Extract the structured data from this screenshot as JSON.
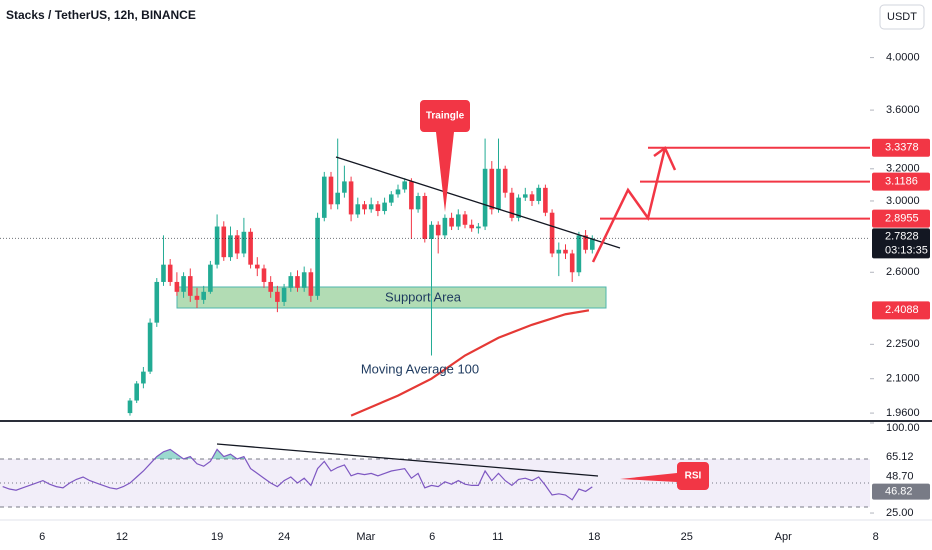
{
  "chart_data": [
    {
      "type": "candlestick",
      "title": "Stacks / TetherUS, 12h, BINANCE",
      "currency": "USDT",
      "log": true,
      "xlim": [
        -19.4,
        111.94
      ],
      "ylim": [
        1.933,
        4.49
      ],
      "yticks": [
        {
          "value": 1.96,
          "label": "1.9600"
        },
        {
          "value": 2.1,
          "label": "2.1000"
        },
        {
          "value": 2.25,
          "label": "2.2500"
        },
        {
          "value": 2.6,
          "label": "2.6000"
        },
        {
          "value": 3,
          "label": "3.0000"
        },
        {
          "value": 3.2,
          "label": "3.2000"
        },
        {
          "value": 3.6,
          "label": "3.6000"
        },
        {
          "value": 4,
          "label": "4.0000"
        }
      ],
      "up_color": "#22ab94",
      "down_color": "#f23645",
      "candles": [
        [
          1.96,
          2.02,
          1.95,
          2.01
        ],
        [
          2.01,
          2.09,
          2.0,
          2.08
        ],
        [
          2.08,
          2.15,
          2.06,
          2.13
        ],
        [
          2.13,
          2.37,
          2.12,
          2.35
        ],
        [
          2.35,
          2.57,
          2.33,
          2.55
        ],
        [
          2.55,
          2.8,
          2.53,
          2.64
        ],
        [
          2.64,
          2.67,
          2.53,
          2.55
        ],
        [
          2.55,
          2.6,
          2.48,
          2.5
        ],
        [
          2.5,
          2.6,
          2.47,
          2.58
        ],
        [
          2.58,
          2.62,
          2.45,
          2.48
        ],
        [
          2.48,
          2.52,
          2.42,
          2.46
        ],
        [
          2.46,
          2.53,
          2.44,
          2.5
        ],
        [
          2.5,
          2.66,
          2.49,
          2.64
        ],
        [
          2.64,
          2.92,
          2.62,
          2.85
        ],
        [
          2.85,
          2.88,
          2.66,
          2.68
        ],
        [
          2.68,
          2.85,
          2.66,
          2.8
        ],
        [
          2.8,
          2.83,
          2.67,
          2.7
        ],
        [
          2.7,
          2.9,
          2.68,
          2.82
        ],
        [
          2.82,
          2.84,
          2.62,
          2.64
        ],
        [
          2.64,
          2.68,
          2.58,
          2.62
        ],
        [
          2.62,
          2.64,
          2.52,
          2.55
        ],
        [
          2.55,
          2.58,
          2.47,
          2.5
        ],
        [
          2.5,
          2.53,
          2.4,
          2.45
        ],
        [
          2.45,
          2.54,
          2.43,
          2.52
        ],
        [
          2.52,
          2.6,
          2.5,
          2.58
        ],
        [
          2.58,
          2.61,
          2.5,
          2.52
        ],
        [
          2.52,
          2.63,
          2.5,
          2.6
        ],
        [
          2.6,
          2.62,
          2.45,
          2.48
        ],
        [
          2.48,
          2.93,
          2.46,
          2.9
        ],
        [
          2.9,
          3.18,
          2.88,
          3.15
        ],
        [
          3.15,
          3.18,
          2.95,
          2.98
        ],
        [
          2.98,
          3.4,
          2.95,
          3.05
        ],
        [
          3.05,
          3.22,
          3.02,
          3.12
        ],
        [
          3.12,
          3.15,
          2.88,
          2.92
        ],
        [
          2.92,
          3.02,
          2.9,
          2.98
        ],
        [
          2.98,
          3.0,
          2.92,
          2.95
        ],
        [
          2.95,
          3.02,
          2.93,
          2.98
        ],
        [
          2.98,
          3.0,
          2.91,
          2.94
        ],
        [
          2.94,
          3.02,
          2.92,
          2.99
        ],
        [
          2.99,
          3.06,
          2.97,
          3.04
        ],
        [
          3.04,
          3.1,
          3.02,
          3.07
        ],
        [
          3.07,
          3.14,
          3.05,
          3.12
        ],
        [
          3.12,
          3.14,
          2.78,
          2.95
        ],
        [
          2.95,
          3.05,
          2.93,
          3.03
        ],
        [
          3.03,
          3.05,
          2.76,
          2.78
        ],
        [
          2.78,
          2.88,
          2.2,
          2.86
        ],
        [
          2.86,
          2.88,
          2.7,
          2.8
        ],
        [
          2.8,
          2.92,
          2.78,
          2.9
        ],
        [
          2.9,
          2.93,
          2.83,
          2.85
        ],
        [
          2.85,
          2.95,
          2.83,
          2.92
        ],
        [
          2.92,
          2.94,
          2.84,
          2.86
        ],
        [
          2.86,
          2.89,
          2.82,
          2.84
        ],
        [
          2.84,
          2.87,
          2.81,
          2.85
        ],
        [
          2.85,
          3.4,
          2.83,
          3.2
        ],
        [
          3.2,
          3.25,
          2.92,
          2.95
        ],
        [
          2.95,
          3.4,
          2.93,
          3.2
        ],
        [
          3.2,
          3.22,
          3.02,
          3.05
        ],
        [
          3.05,
          3.08,
          2.88,
          2.9
        ],
        [
          2.9,
          3.04,
          2.88,
          3.02
        ],
        [
          3.02,
          3.08,
          3.0,
          3.04
        ],
        [
          3.04,
          3.06,
          2.97,
          3.0
        ],
        [
          3.0,
          3.1,
          2.98,
          3.08
        ],
        [
          3.08,
          3.1,
          2.91,
          2.93
        ],
        [
          2.93,
          2.95,
          2.68,
          2.7
        ],
        [
          2.7,
          2.76,
          2.58,
          2.72
        ],
        [
          2.72,
          2.75,
          2.67,
          2.7
        ],
        [
          2.7,
          2.72,
          2.55,
          2.6
        ],
        [
          2.6,
          2.82,
          2.58,
          2.8
        ],
        [
          2.8,
          2.83,
          2.7,
          2.72
        ],
        [
          2.72,
          2.8,
          2.7,
          2.7828
        ]
      ],
      "series": [
        {
          "name": "Moving Average 100",
          "color": "#e53935",
          "x": [
            33,
            40,
            45,
            50,
            55,
            60,
            65,
            68.5
          ],
          "values": [
            1.95,
            2.03,
            2.1,
            2.2,
            2.28,
            2.34,
            2.39,
            2.4088
          ]
        }
      ],
      "last_price": 2.7828,
      "countdown": "03:13:35",
      "price_labels": [
        3.3378,
        3.1186,
        2.8955,
        2.4088
      ],
      "price_label_color": "#f23645",
      "annotations": [
        "Traingle",
        "Support Area"
      ]
    },
    {
      "type": "line",
      "annotation": "RSI",
      "xlim": [
        -19.4,
        111.94
      ],
      "ylim": [
        19.2,
        100.8
      ],
      "yticks": [
        {
          "value": 100,
          "label": "100.00"
        },
        {
          "value": 25,
          "label": "25.00"
        }
      ],
      "band_lines": [
        70,
        50,
        30
      ],
      "scale_labels": [
        65.12,
        {
          "value": 48.7,
          "label": "48.70"
        }
      ],
      "last_value": 46.82,
      "xticks": [
        {
          "value": -13.1,
          "label": "6"
        },
        {
          "value": -1.2,
          "label": "12"
        },
        {
          "value": 13,
          "label": "19"
        },
        {
          "value": 23,
          "label": "24"
        },
        {
          "value": 35.2,
          "label": "Mar"
        },
        {
          "value": 45.1,
          "label": "6"
        },
        {
          "value": 54.9,
          "label": "11"
        },
        {
          "value": 69.3,
          "label": "18"
        },
        {
          "value": 83.1,
          "label": "25"
        },
        {
          "value": 97.5,
          "label": "Apr"
        },
        {
          "value": 111.3,
          "label": "8"
        }
      ],
      "series": [
        {
          "color": "#7e57c2",
          "x": [
            -19,
            -18,
            -17,
            -16,
            -15,
            -14,
            -13,
            -12,
            -11,
            -10,
            -9,
            -8,
            -7,
            -6,
            -5,
            -4,
            -3,
            -2,
            -1,
            0,
            1,
            2,
            3,
            4,
            5,
            6,
            7,
            8,
            9,
            10,
            11,
            12,
            13,
            14,
            15,
            16,
            17,
            18,
            19,
            20,
            21,
            22,
            23,
            24,
            25,
            26,
            27,
            28,
            29,
            30,
            31,
            32,
            33,
            34,
            35,
            36,
            37,
            38,
            39,
            40,
            41,
            42,
            43,
            44,
            45,
            46,
            47,
            48,
            49,
            50,
            51,
            52,
            53,
            54,
            55,
            56,
            57,
            58,
            59,
            60,
            61,
            62,
            63,
            64,
            65,
            66,
            67,
            68,
            69
          ],
          "values": [
            47,
            45,
            44,
            46,
            48,
            50,
            52,
            49,
            47,
            46,
            50,
            53,
            55,
            52,
            50,
            48,
            46,
            45,
            47,
            50,
            55,
            60,
            66,
            72,
            76,
            78,
            74,
            70,
            72,
            66,
            64,
            68,
            78,
            72,
            74,
            70,
            72,
            62,
            58,
            54,
            50,
            47,
            52,
            55,
            50,
            54,
            48,
            62,
            68,
            60,
            63,
            65,
            56,
            58,
            57,
            58,
            56,
            58,
            60,
            61,
            62,
            54,
            58,
            46,
            48,
            47,
            51,
            49,
            52,
            49,
            48,
            48,
            60,
            52,
            58,
            52,
            48,
            53,
            54,
            52,
            55,
            48,
            40,
            41,
            40,
            36,
            45,
            43,
            46.82
          ]
        }
      ]
    }
  ]
}
